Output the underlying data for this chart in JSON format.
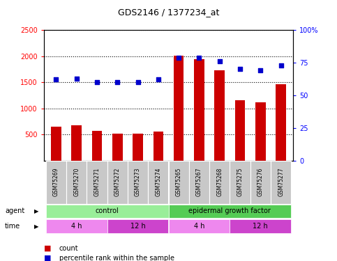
{
  "title": "GDS2146 / 1377234_at",
  "samples": [
    "GSM75269",
    "GSM75270",
    "GSM75271",
    "GSM75272",
    "GSM75273",
    "GSM75274",
    "GSM75265",
    "GSM75267",
    "GSM75268",
    "GSM75275",
    "GSM75276",
    "GSM75277"
  ],
  "counts": [
    650,
    680,
    570,
    510,
    510,
    555,
    2010,
    1940,
    1730,
    1150,
    1110,
    1460
  ],
  "percentiles": [
    62,
    63,
    60,
    60,
    60,
    62,
    79,
    79,
    76,
    70,
    69,
    73
  ],
  "ylim_left": [
    0,
    2500
  ],
  "ylim_right": [
    0,
    100
  ],
  "yticks_left": [
    500,
    1000,
    1500,
    2000,
    2500
  ],
  "yticks_right": [
    0,
    25,
    50,
    75,
    100
  ],
  "bar_color": "#cc0000",
  "dot_color": "#0000cc",
  "agent_groups": [
    {
      "label": "control",
      "start": 0,
      "end": 6,
      "color": "#99ee99"
    },
    {
      "label": "epidermal growth factor",
      "start": 6,
      "end": 12,
      "color": "#55cc55"
    }
  ],
  "time_groups": [
    {
      "label": "4 h",
      "start": 0,
      "end": 3,
      "color": "#ee88ee"
    },
    {
      "label": "12 h",
      "start": 3,
      "end": 6,
      "color": "#cc44cc"
    },
    {
      "label": "4 h",
      "start": 6,
      "end": 9,
      "color": "#ee88ee"
    },
    {
      "label": "12 h",
      "start": 9,
      "end": 12,
      "color": "#cc44cc"
    }
  ],
  "legend_count_color": "#cc0000",
  "legend_pct_color": "#0000cc",
  "sample_box_color": "#c8c8c8",
  "plot_bg_color": "#ffffff"
}
